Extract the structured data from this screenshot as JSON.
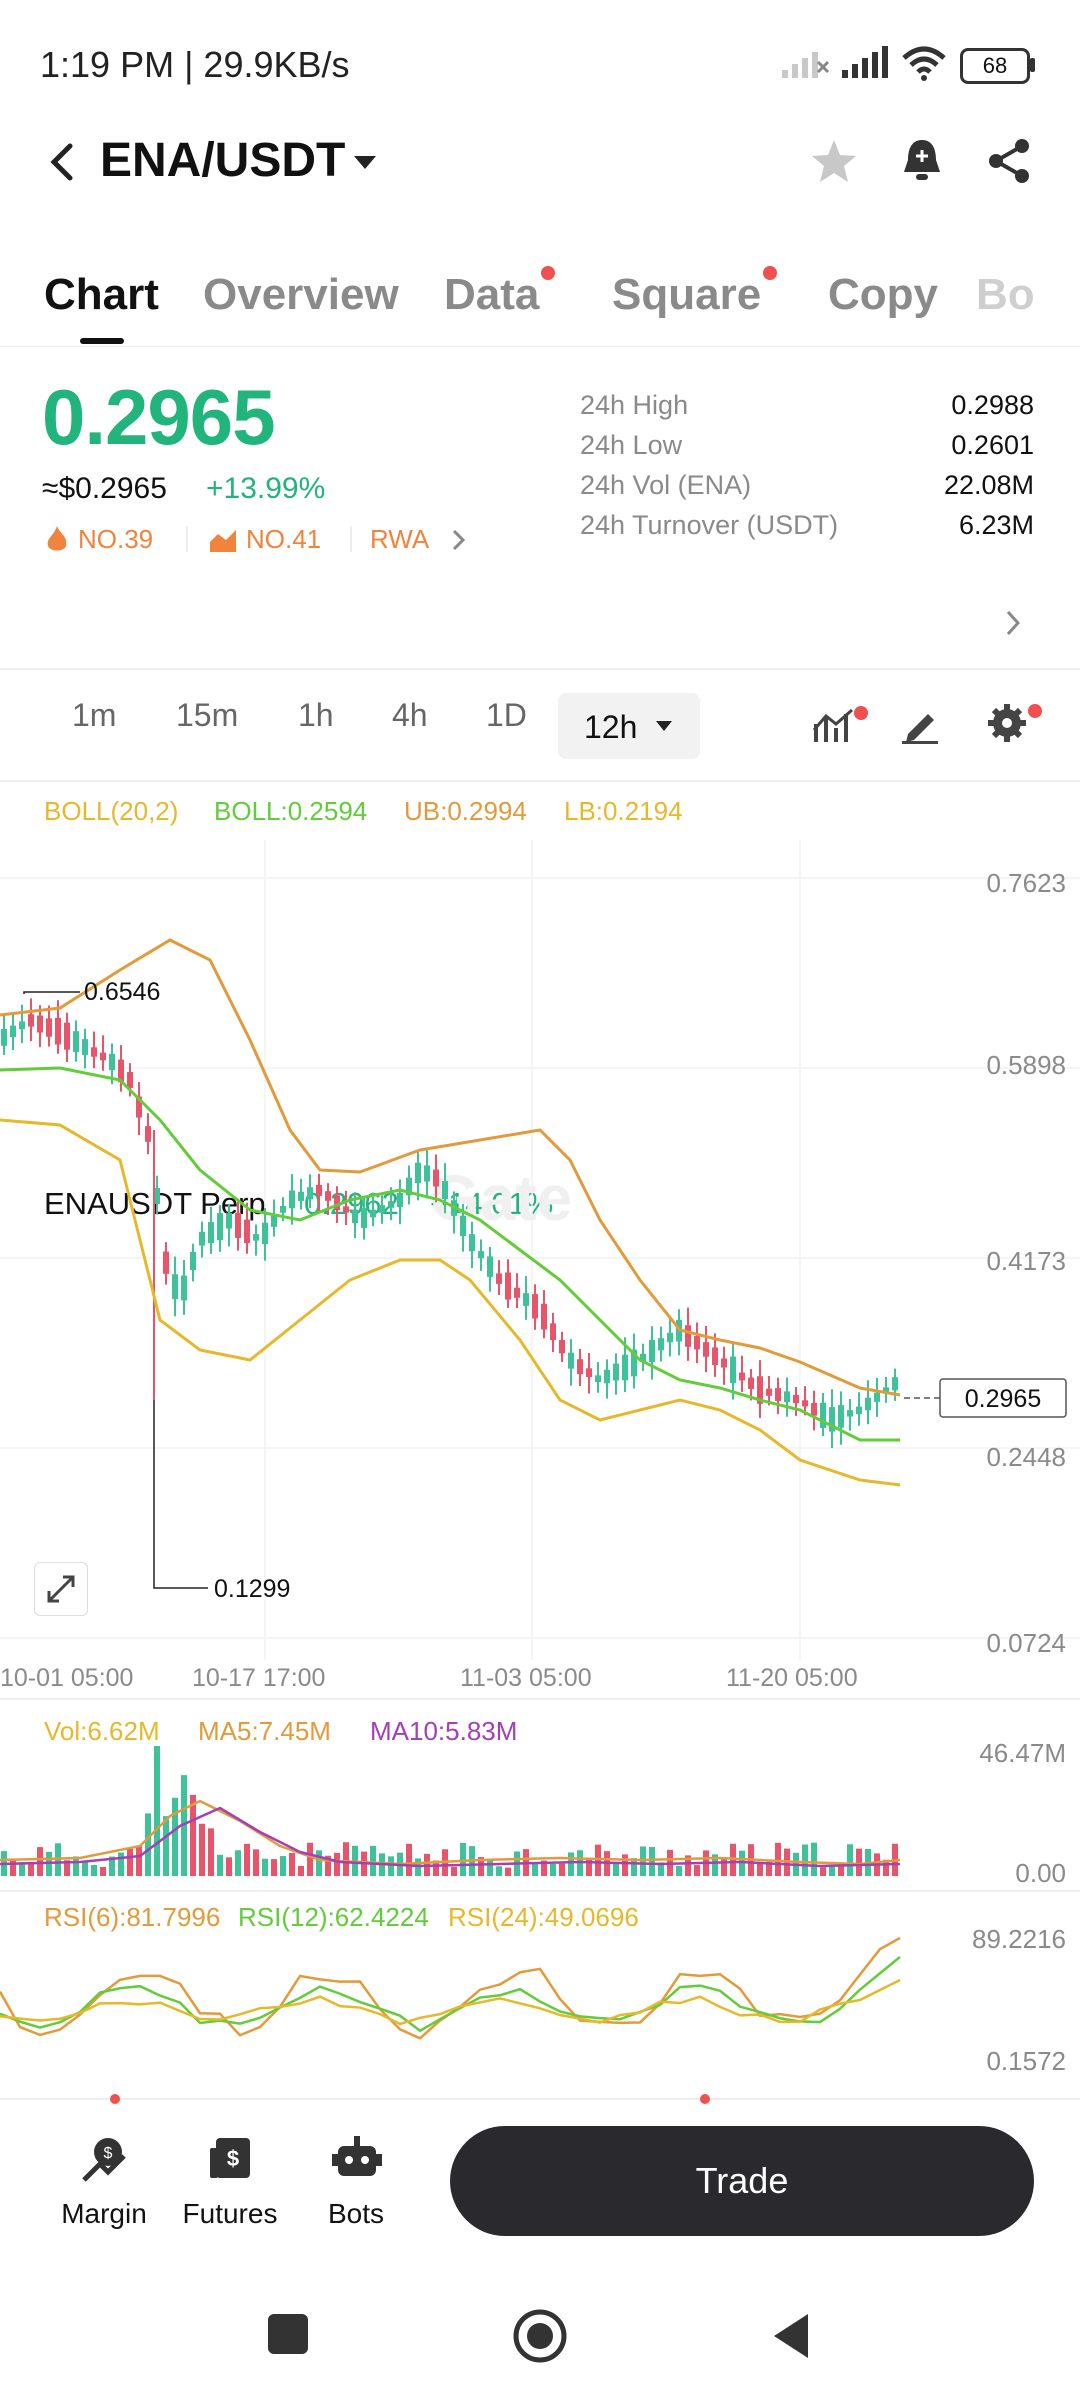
{
  "status_bar": {
    "time": "1:19 PM | 29.9KB/s",
    "battery": "68"
  },
  "header": {
    "pair": "ENA/USDT"
  },
  "tabs": [
    {
      "label": "Chart",
      "active": true,
      "dot": false
    },
    {
      "label": "Overview",
      "active": false,
      "dot": false
    },
    {
      "label": "Data",
      "active": false,
      "dot": true
    },
    {
      "label": "Square",
      "active": false,
      "dot": true
    },
    {
      "label": "Copy",
      "active": false,
      "dot": false
    },
    {
      "label": "Bo",
      "active": false,
      "dot": false
    }
  ],
  "ticker": {
    "price": "0.2965",
    "usd_price": "≈$0.2965",
    "change": "+13.99%",
    "rank1": "NO.39",
    "rank2": "NO.41",
    "tag": "RWA"
  },
  "stats": [
    {
      "label": "24h High",
      "value": "0.2988"
    },
    {
      "label": "24h Low",
      "value": "0.2601"
    },
    {
      "label": "24h Vol (ENA)",
      "value": "22.08M"
    },
    {
      "label": "24h Turnover (USDT)",
      "value": "6.23M"
    }
  ],
  "perp": {
    "name": "ENAUSDT Perp",
    "price": "0.2962",
    "change": "+14.01%"
  },
  "timeframes": [
    "1m",
    "15m",
    "1h",
    "4h",
    "1D",
    "12h"
  ],
  "active_timeframe": "12h",
  "indicators": {
    "boll": [
      "BOLL(20,2)",
      "BOLL:0.2594",
      "UB:0.2994",
      "LB:0.2194"
    ],
    "vol": [
      "Vol:6.62M",
      "MA5:7.45M",
      "MA10:5.83M"
    ],
    "rsi": [
      "RSI(6):81.7996",
      "RSI(12):62.4224",
      "RSI(24):49.0696"
    ]
  },
  "main_chart": {
    "y_ticks": [
      "0.7623",
      "0.5898",
      "0.4173",
      "0.2448",
      "0.0724"
    ],
    "x_ticks": [
      "10-01 05:00",
      "10-17 17:00",
      "11-03 05:00",
      "11-20 05:00"
    ],
    "high_label": "0.6546",
    "low_label": "0.1299",
    "current_label": "0.2965",
    "watermark": "Gate"
  },
  "volume_axis": [
    "46.47M",
    "0.00"
  ],
  "rsi_axis": [
    "89.2216",
    "0.1572"
  ],
  "colors": {
    "up": "#3ec29a",
    "down": "#e8546a",
    "accent": "#21b47c",
    "boll_mid": "#62cc3a",
    "boll_ub": "#e39a3a",
    "boll_lb": "#e6b82a",
    "ma10": "#a33fb8"
  },
  "bottom_nav": [
    {
      "label": "Margin",
      "icon": "margin-icon"
    },
    {
      "label": "Futures",
      "icon": "futures-icon"
    },
    {
      "label": "Bots",
      "icon": "bots-icon"
    }
  ],
  "trade_button": "Trade"
}
